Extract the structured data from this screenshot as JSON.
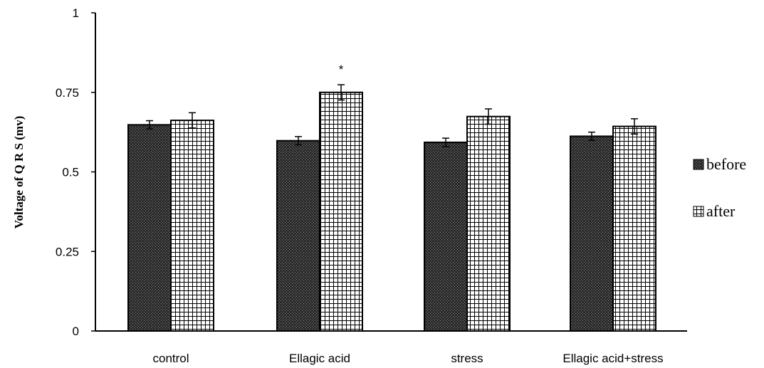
{
  "chart_data": {
    "type": "bar",
    "ylabel": "Voltage of Q R S (mv)",
    "xlabel": "",
    "ylim": [
      0,
      1
    ],
    "yticks": [
      0,
      0.25,
      0.5,
      0.75,
      1
    ],
    "ytick_labels": [
      "0",
      "0.25",
      "0.5",
      "0.75",
      "1"
    ],
    "categories": [
      "control",
      "Ellagic acid",
      "stress",
      "Ellagic acid+stress"
    ],
    "series": [
      {
        "name": "before",
        "pattern": "dotted-dark",
        "values": [
          0.648,
          0.598,
          0.593,
          0.612
        ],
        "errors": [
          0.013,
          0.013,
          0.013,
          0.013
        ]
      },
      {
        "name": "after",
        "pattern": "grid",
        "values": [
          0.662,
          0.75,
          0.674,
          0.643
        ],
        "errors": [
          0.024,
          0.024,
          0.024,
          0.024
        ]
      }
    ],
    "annotations": [
      {
        "text": "*",
        "category": "Ellagic acid",
        "series": "after"
      }
    ],
    "legend_position": "right",
    "grid": false,
    "colors": {
      "axis": "#000000",
      "before_fill": "#1a1a1a",
      "after_fill": "#ffffff",
      "after_grid": "#000000"
    }
  }
}
